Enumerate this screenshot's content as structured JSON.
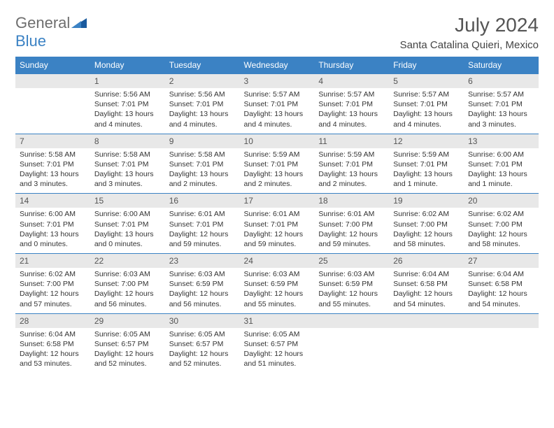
{
  "logo": {
    "word1": "General",
    "word2": "Blue"
  },
  "title": "July 2024",
  "location": "Santa Catalina Quieri, Mexico",
  "header_bg": "#3b82c4",
  "header_fg": "#ffffff",
  "daynum_bg": "#e8e8e8",
  "border_color": "#3b82c4",
  "weekdays": [
    "Sunday",
    "Monday",
    "Tuesday",
    "Wednesday",
    "Thursday",
    "Friday",
    "Saturday"
  ],
  "weeks": [
    [
      null,
      {
        "n": "1",
        "sr": "5:56 AM",
        "ss": "7:01 PM",
        "dl": "13 hours and 4 minutes."
      },
      {
        "n": "2",
        "sr": "5:56 AM",
        "ss": "7:01 PM",
        "dl": "13 hours and 4 minutes."
      },
      {
        "n": "3",
        "sr": "5:57 AM",
        "ss": "7:01 PM",
        "dl": "13 hours and 4 minutes."
      },
      {
        "n": "4",
        "sr": "5:57 AM",
        "ss": "7:01 PM",
        "dl": "13 hours and 4 minutes."
      },
      {
        "n": "5",
        "sr": "5:57 AM",
        "ss": "7:01 PM",
        "dl": "13 hours and 4 minutes."
      },
      {
        "n": "6",
        "sr": "5:57 AM",
        "ss": "7:01 PM",
        "dl": "13 hours and 3 minutes."
      }
    ],
    [
      {
        "n": "7",
        "sr": "5:58 AM",
        "ss": "7:01 PM",
        "dl": "13 hours and 3 minutes."
      },
      {
        "n": "8",
        "sr": "5:58 AM",
        "ss": "7:01 PM",
        "dl": "13 hours and 3 minutes."
      },
      {
        "n": "9",
        "sr": "5:58 AM",
        "ss": "7:01 PM",
        "dl": "13 hours and 2 minutes."
      },
      {
        "n": "10",
        "sr": "5:59 AM",
        "ss": "7:01 PM",
        "dl": "13 hours and 2 minutes."
      },
      {
        "n": "11",
        "sr": "5:59 AM",
        "ss": "7:01 PM",
        "dl": "13 hours and 2 minutes."
      },
      {
        "n": "12",
        "sr": "5:59 AM",
        "ss": "7:01 PM",
        "dl": "13 hours and 1 minute."
      },
      {
        "n": "13",
        "sr": "6:00 AM",
        "ss": "7:01 PM",
        "dl": "13 hours and 1 minute."
      }
    ],
    [
      {
        "n": "14",
        "sr": "6:00 AM",
        "ss": "7:01 PM",
        "dl": "13 hours and 0 minutes."
      },
      {
        "n": "15",
        "sr": "6:00 AM",
        "ss": "7:01 PM",
        "dl": "13 hours and 0 minutes."
      },
      {
        "n": "16",
        "sr": "6:01 AM",
        "ss": "7:01 PM",
        "dl": "12 hours and 59 minutes."
      },
      {
        "n": "17",
        "sr": "6:01 AM",
        "ss": "7:01 PM",
        "dl": "12 hours and 59 minutes."
      },
      {
        "n": "18",
        "sr": "6:01 AM",
        "ss": "7:00 PM",
        "dl": "12 hours and 59 minutes."
      },
      {
        "n": "19",
        "sr": "6:02 AM",
        "ss": "7:00 PM",
        "dl": "12 hours and 58 minutes."
      },
      {
        "n": "20",
        "sr": "6:02 AM",
        "ss": "7:00 PM",
        "dl": "12 hours and 58 minutes."
      }
    ],
    [
      {
        "n": "21",
        "sr": "6:02 AM",
        "ss": "7:00 PM",
        "dl": "12 hours and 57 minutes."
      },
      {
        "n": "22",
        "sr": "6:03 AM",
        "ss": "7:00 PM",
        "dl": "12 hours and 56 minutes."
      },
      {
        "n": "23",
        "sr": "6:03 AM",
        "ss": "6:59 PM",
        "dl": "12 hours and 56 minutes."
      },
      {
        "n": "24",
        "sr": "6:03 AM",
        "ss": "6:59 PM",
        "dl": "12 hours and 55 minutes."
      },
      {
        "n": "25",
        "sr": "6:03 AM",
        "ss": "6:59 PM",
        "dl": "12 hours and 55 minutes."
      },
      {
        "n": "26",
        "sr": "6:04 AM",
        "ss": "6:58 PM",
        "dl": "12 hours and 54 minutes."
      },
      {
        "n": "27",
        "sr": "6:04 AM",
        "ss": "6:58 PM",
        "dl": "12 hours and 54 minutes."
      }
    ],
    [
      {
        "n": "28",
        "sr": "6:04 AM",
        "ss": "6:58 PM",
        "dl": "12 hours and 53 minutes."
      },
      {
        "n": "29",
        "sr": "6:05 AM",
        "ss": "6:57 PM",
        "dl": "12 hours and 52 minutes."
      },
      {
        "n": "30",
        "sr": "6:05 AM",
        "ss": "6:57 PM",
        "dl": "12 hours and 52 minutes."
      },
      {
        "n": "31",
        "sr": "6:05 AM",
        "ss": "6:57 PM",
        "dl": "12 hours and 51 minutes."
      },
      null,
      null,
      null
    ]
  ],
  "labels": {
    "sunrise": "Sunrise:",
    "sunset": "Sunset:",
    "daylight": "Daylight:"
  }
}
